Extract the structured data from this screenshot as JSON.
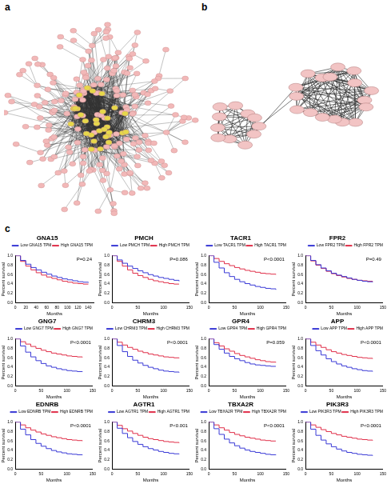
{
  "panels": [
    "a",
    "b",
    "c"
  ],
  "chart_data": [
    {
      "type": "line",
      "title": "GNA15",
      "x_label": "Months",
      "y_label": "Percent survival",
      "annotation": "P=0.24",
      "x": [
        0,
        10,
        20,
        30,
        40,
        50,
        60,
        70,
        80,
        90,
        100,
        110,
        120,
        130,
        140,
        150
      ],
      "xlim": [
        0,
        150
      ],
      "xticks": [
        0,
        20,
        40,
        60,
        80,
        100,
        120,
        140
      ],
      "ylim": [
        0,
        1
      ],
      "yticks": [
        {
          "value": 0,
          "label": "0.0"
        },
        0.2,
        0.4,
        0.6,
        0.8,
        {
          "value": 1,
          "label": "1.0"
        }
      ],
      "legend": "top",
      "line_style": "step",
      "series": [
        {
          "name": "Low GNA15 TPM",
          "color": "#3a3ad6",
          "values": [
            1,
            0.9,
            0.82,
            0.75,
            0.7,
            0.65,
            0.61,
            0.57,
            0.54,
            0.51,
            0.49,
            0.47,
            0.45,
            0.44,
            0.43,
            null
          ]
        },
        {
          "name": "High GNA15 TPM",
          "color": "#e0304a",
          "values": [
            1,
            0.88,
            0.78,
            0.7,
            0.64,
            0.59,
            0.55,
            0.52,
            0.49,
            0.46,
            0.44,
            0.42,
            0.41,
            0.4,
            0.4,
            null
          ]
        }
      ]
    },
    {
      "type": "line",
      "title": "PMCH",
      "x_label": "Months",
      "y_label": "Percent survival",
      "annotation": "P=0.086",
      "x": [
        0,
        10,
        20,
        30,
        40,
        50,
        60,
        70,
        80,
        90,
        100,
        110,
        120,
        130,
        140,
        150
      ],
      "xlim": [
        0,
        150
      ],
      "xticks": [
        0,
        50,
        100,
        150
      ],
      "ylim": [
        0,
        1
      ],
      "yticks": [
        {
          "value": 0,
          "label": "0.0"
        },
        0.2,
        0.4,
        0.6,
        0.8,
        {
          "value": 1,
          "label": "1.0"
        }
      ],
      "legend": "top",
      "line_style": "step",
      "series": [
        {
          "name": "Low PMCH TPM",
          "color": "#3a3ad6",
          "values": [
            1,
            0.91,
            0.84,
            0.78,
            0.73,
            0.68,
            0.64,
            0.6,
            0.57,
            0.54,
            0.52,
            0.5,
            0.48,
            0.46,
            null,
            null
          ]
        },
        {
          "name": "High PMCH TPM",
          "color": "#e0304a",
          "values": [
            1,
            0.88,
            0.78,
            0.7,
            0.63,
            0.58,
            0.54,
            0.5,
            0.47,
            0.45,
            0.43,
            0.41,
            0.4,
            0.4,
            null,
            null
          ]
        }
      ]
    },
    {
      "type": "line",
      "title": "TACR1",
      "x_label": "Months",
      "y_label": "Percent survival",
      "annotation": "P<0.0001",
      "x": [
        0,
        10,
        20,
        30,
        40,
        50,
        60,
        70,
        80,
        90,
        100,
        110,
        120,
        130,
        140,
        150
      ],
      "xlim": [
        0,
        150
      ],
      "xticks": [
        0,
        50,
        100,
        150
      ],
      "ylim": [
        0,
        1
      ],
      "yticks": [
        {
          "value": 0,
          "label": "0.0"
        },
        0.2,
        0.4,
        0.6,
        0.8,
        {
          "value": 1,
          "label": "1.0"
        }
      ],
      "legend": "top",
      "line_style": "step",
      "series": [
        {
          "name": "Low TACR1 TPM",
          "color": "#3a3ad6",
          "values": [
            1,
            0.86,
            0.74,
            0.64,
            0.56,
            0.5,
            0.45,
            0.41,
            0.38,
            0.35,
            0.33,
            0.31,
            0.3,
            0.28,
            null,
            null
          ]
        },
        {
          "name": "High TACR1 TPM",
          "color": "#e0304a",
          "values": [
            1,
            0.94,
            0.88,
            0.83,
            0.79,
            0.75,
            0.72,
            0.69,
            0.67,
            0.65,
            0.63,
            0.62,
            0.61,
            0.6,
            null,
            null
          ]
        }
      ]
    },
    {
      "type": "line",
      "title": "FPR2",
      "x_label": "Months",
      "y_label": "Percent survival",
      "annotation": "P=0.49",
      "x": [
        0,
        10,
        20,
        30,
        40,
        50,
        60,
        70,
        80,
        90,
        100,
        110,
        120,
        130,
        140,
        150
      ],
      "xlim": [
        0,
        150
      ],
      "xticks": [
        0,
        50,
        100,
        150
      ],
      "ylim": [
        0,
        1
      ],
      "yticks": [
        {
          "value": 0,
          "label": "0.0"
        },
        0.2,
        0.4,
        0.6,
        0.8,
        {
          "value": 1,
          "label": "1.0"
        }
      ],
      "legend": "top",
      "line_style": "step",
      "series": [
        {
          "name": "Low FPR2 TPM",
          "color": "#3a3ad6",
          "values": [
            1,
            0.9,
            0.81,
            0.74,
            0.68,
            0.63,
            0.59,
            0.56,
            0.53,
            0.5,
            0.48,
            0.46,
            0.45,
            0.44,
            null,
            null
          ]
        },
        {
          "name": "High FPR2 TPM",
          "color": "#e0304a",
          "values": [
            1,
            0.89,
            0.8,
            0.73,
            0.67,
            0.62,
            0.58,
            0.55,
            0.52,
            0.5,
            0.48,
            0.47,
            0.46,
            0.45,
            null,
            null
          ]
        }
      ]
    },
    {
      "type": "line",
      "title": "GNG7",
      "x_label": "Months",
      "y_label": "Percent survival",
      "annotation": "P<0.0001",
      "x": [
        0,
        10,
        20,
        30,
        40,
        50,
        60,
        70,
        80,
        90,
        100,
        110,
        120,
        130,
        140,
        150
      ],
      "xlim": [
        0,
        150
      ],
      "xticks": [
        0,
        50,
        100,
        150
      ],
      "ylim": [
        0,
        1
      ],
      "yticks": [
        {
          "value": 0,
          "label": "0.0"
        },
        0.2,
        0.4,
        0.6,
        0.8,
        {
          "value": 1,
          "label": "1.0"
        }
      ],
      "legend": "top",
      "line_style": "step",
      "series": [
        {
          "name": "Low GNG7 TPM",
          "color": "#3a3ad6",
          "values": [
            1,
            0.85,
            0.72,
            0.62,
            0.54,
            0.48,
            0.43,
            0.4,
            0.37,
            0.35,
            0.33,
            0.32,
            0.31,
            0.3,
            null,
            null
          ]
        },
        {
          "name": "High GNG7 TPM",
          "color": "#e0304a",
          "values": [
            1,
            0.94,
            0.89,
            0.84,
            0.8,
            0.76,
            0.73,
            0.7,
            0.68,
            0.66,
            0.64,
            0.63,
            0.62,
            0.61,
            null,
            null
          ]
        }
      ]
    },
    {
      "type": "line",
      "title": "CHRM3",
      "x_label": "Months",
      "y_label": "Percent survival",
      "annotation": "P<0.0001",
      "x": [
        0,
        10,
        20,
        30,
        40,
        50,
        60,
        70,
        80,
        90,
        100,
        110,
        120,
        130,
        140,
        150
      ],
      "xlim": [
        0,
        150
      ],
      "xticks": [
        0,
        50,
        100,
        150
      ],
      "ylim": [
        0,
        1
      ],
      "yticks": [
        {
          "value": 0,
          "label": "0.0"
        },
        0.2,
        0.4,
        0.6,
        0.8,
        {
          "value": 1,
          "label": "1.0"
        }
      ],
      "legend": "top",
      "line_style": "step",
      "series": [
        {
          "name": "Low CHRM3 TPM",
          "color": "#3a3ad6",
          "values": [
            1,
            0.86,
            0.73,
            0.63,
            0.55,
            0.49,
            0.44,
            0.4,
            0.37,
            0.34,
            0.32,
            0.31,
            0.3,
            0.29,
            null,
            null
          ]
        },
        {
          "name": "High CHRM3 TPM",
          "color": "#e0304a",
          "values": [
            1,
            0.93,
            0.87,
            0.82,
            0.78,
            0.74,
            0.71,
            0.68,
            0.66,
            0.64,
            0.62,
            0.61,
            0.6,
            0.59,
            null,
            null
          ]
        }
      ]
    },
    {
      "type": "line",
      "title": "GPR4",
      "x_label": "Months",
      "y_label": "Percent survival",
      "annotation": "P=0.059",
      "x": [
        0,
        10,
        20,
        30,
        40,
        50,
        60,
        70,
        80,
        90,
        100,
        110,
        120,
        130,
        140,
        150
      ],
      "xlim": [
        0,
        150
      ],
      "xticks": [
        0,
        50,
        100,
        150
      ],
      "ylim": [
        0,
        1
      ],
      "yticks": [
        {
          "value": 0,
          "label": "0.0"
        },
        0.2,
        0.4,
        0.6,
        0.8,
        {
          "value": 1,
          "label": "1.0"
        }
      ],
      "legend": "top",
      "line_style": "step",
      "series": [
        {
          "name": "Low GPR4 TPM",
          "color": "#3a3ad6",
          "values": [
            1,
            0.88,
            0.78,
            0.7,
            0.63,
            0.58,
            0.54,
            0.5,
            0.47,
            0.45,
            0.44,
            0.43,
            0.42,
            0.42,
            null,
            null
          ]
        },
        {
          "name": "High GPR4 TPM",
          "color": "#e0304a",
          "values": [
            1,
            0.92,
            0.85,
            0.79,
            0.74,
            0.69,
            0.65,
            0.62,
            0.59,
            0.56,
            0.54,
            0.52,
            0.51,
            0.5,
            null,
            null
          ]
        }
      ]
    },
    {
      "type": "line",
      "title": "APP",
      "x_label": "Months",
      "y_label": "Percent survival",
      "annotation": "P<0.0001",
      "x": [
        0,
        10,
        20,
        30,
        40,
        50,
        60,
        70,
        80,
        90,
        100,
        110,
        120,
        130,
        140,
        150
      ],
      "xlim": [
        0,
        150
      ],
      "xticks": [
        0,
        50,
        100,
        150
      ],
      "ylim": [
        0,
        1
      ],
      "yticks": [
        {
          "value": 0,
          "label": "0.0"
        },
        0.2,
        0.4,
        0.6,
        0.8,
        {
          "value": 1,
          "label": "1.0"
        }
      ],
      "legend": "top",
      "line_style": "step",
      "series": [
        {
          "name": "Low APP TPM",
          "color": "#3a3ad6",
          "values": [
            1,
            0.86,
            0.75,
            0.66,
            0.58,
            0.52,
            0.47,
            0.43,
            0.4,
            0.37,
            0.35,
            0.33,
            0.32,
            0.31,
            null,
            null
          ]
        },
        {
          "name": "High APP TPM",
          "color": "#e0304a",
          "values": [
            1,
            0.93,
            0.87,
            0.82,
            0.77,
            0.73,
            0.7,
            0.67,
            0.65,
            0.63,
            0.61,
            0.6,
            0.59,
            0.58,
            null,
            null
          ]
        }
      ]
    },
    {
      "type": "line",
      "title": "EDNRB",
      "x_label": "Months",
      "y_label": "Percent survival",
      "annotation": "P<0.0001",
      "x": [
        0,
        10,
        20,
        30,
        40,
        50,
        60,
        70,
        80,
        90,
        100,
        110,
        120,
        130,
        140,
        150
      ],
      "xlim": [
        0,
        150
      ],
      "xticks": [
        0,
        50,
        100,
        150
      ],
      "ylim": [
        0,
        1
      ],
      "yticks": [
        {
          "value": 0,
          "label": "0.0"
        },
        0.2,
        0.4,
        0.6,
        0.8,
        {
          "value": 1,
          "label": "1.0"
        }
      ],
      "legend": "top",
      "line_style": "step",
      "series": [
        {
          "name": "Low EDNRB TPM",
          "color": "#3a3ad6",
          "values": [
            1,
            0.85,
            0.73,
            0.63,
            0.55,
            0.49,
            0.44,
            0.4,
            0.37,
            0.35,
            0.33,
            0.32,
            0.31,
            0.3,
            null,
            null
          ]
        },
        {
          "name": "High EDNRB TPM",
          "color": "#e0304a",
          "values": [
            1,
            0.94,
            0.88,
            0.83,
            0.79,
            0.75,
            0.72,
            0.69,
            0.67,
            0.65,
            0.63,
            0.62,
            0.61,
            0.6,
            null,
            null
          ]
        }
      ]
    },
    {
      "type": "line",
      "title": "AGTR1",
      "x_label": "Months",
      "y_label": "Percent survival",
      "annotation": "P<0.001",
      "x": [
        0,
        10,
        20,
        30,
        40,
        50,
        60,
        70,
        80,
        90,
        100,
        110,
        120,
        130,
        140,
        150
      ],
      "xlim": [
        0,
        150
      ],
      "xticks": [
        0,
        50,
        100,
        150
      ],
      "ylim": [
        0,
        1
      ],
      "yticks": [
        {
          "value": 0,
          "label": "0.0"
        },
        0.2,
        0.4,
        0.6,
        0.8,
        {
          "value": 1,
          "label": "1.0"
        }
      ],
      "legend": "top",
      "line_style": "step",
      "series": [
        {
          "name": "Low AGTR1 TPM",
          "color": "#3a3ad6",
          "values": [
            1,
            0.87,
            0.76,
            0.67,
            0.59,
            0.53,
            0.48,
            0.44,
            0.41,
            0.38,
            0.36,
            0.34,
            0.33,
            0.32,
            null,
            null
          ]
        },
        {
          "name": "High AGTR1 TPM",
          "color": "#e0304a",
          "values": [
            1,
            0.93,
            0.86,
            0.81,
            0.76,
            0.72,
            0.68,
            0.65,
            0.63,
            0.61,
            0.59,
            0.58,
            0.57,
            0.56,
            null,
            null
          ]
        }
      ]
    },
    {
      "type": "line",
      "title": "TBXA2R",
      "x_label": "Months",
      "y_label": "Percent survival",
      "annotation": "P<0.0001",
      "x": [
        0,
        10,
        20,
        30,
        40,
        50,
        60,
        70,
        80,
        90,
        100,
        110,
        120,
        130,
        140,
        150
      ],
      "xlim": [
        0,
        150
      ],
      "xticks": [
        0,
        50,
        100,
        150
      ],
      "ylim": [
        0,
        1
      ],
      "yticks": [
        {
          "value": 0,
          "label": "0.0"
        },
        0.2,
        0.4,
        0.6,
        0.8,
        {
          "value": 1,
          "label": "1.0"
        }
      ],
      "legend": "top",
      "line_style": "step",
      "series": [
        {
          "name": "Low TBXA2R TPM",
          "color": "#3a3ad6",
          "values": [
            1,
            0.86,
            0.74,
            0.64,
            0.56,
            0.5,
            0.45,
            0.41,
            0.38,
            0.36,
            0.34,
            0.32,
            0.31,
            0.3,
            null,
            null
          ]
        },
        {
          "name": "High TBXA2R TPM",
          "color": "#e0304a",
          "values": [
            1,
            0.94,
            0.88,
            0.83,
            0.78,
            0.74,
            0.71,
            0.68,
            0.66,
            0.64,
            0.62,
            0.61,
            0.6,
            0.6,
            null,
            null
          ]
        }
      ]
    },
    {
      "type": "line",
      "title": "PIK3R3",
      "x_label": "Months",
      "y_label": "Percent survival",
      "annotation": "P<0.0001",
      "x": [
        0,
        10,
        20,
        30,
        40,
        50,
        60,
        70,
        80,
        90,
        100,
        110,
        120,
        130,
        140,
        150
      ],
      "xlim": [
        0,
        150
      ],
      "xticks": [
        0,
        50,
        100,
        150
      ],
      "ylim": [
        0,
        1
      ],
      "yticks": [
        {
          "value": 0,
          "label": "0.0"
        },
        0.2,
        0.4,
        0.6,
        0.8,
        {
          "value": 1,
          "label": "1.0"
        }
      ],
      "legend": "top",
      "line_style": "step",
      "series": [
        {
          "name": "Low PIK3R3 TPM",
          "color": "#3a3ad6",
          "values": [
            1,
            0.85,
            0.72,
            0.62,
            0.54,
            0.48,
            0.43,
            0.39,
            0.36,
            0.34,
            0.32,
            0.31,
            0.3,
            0.29,
            null,
            null
          ]
        },
        {
          "name": "High PIK3R3 TPM",
          "color": "#e0304a",
          "values": [
            1,
            0.94,
            0.89,
            0.84,
            0.8,
            0.76,
            0.73,
            0.7,
            0.68,
            0.66,
            0.64,
            0.63,
            0.62,
            0.61,
            null,
            null
          ]
        }
      ]
    }
  ]
}
